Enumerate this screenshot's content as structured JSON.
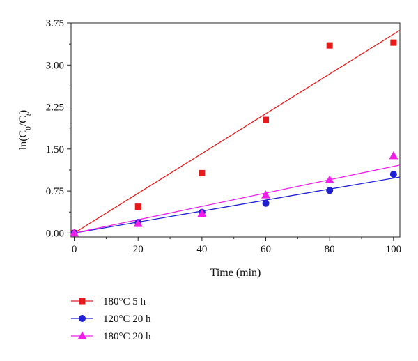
{
  "chart_data": {
    "type": "scatter",
    "xlabel": "Time (min)",
    "ylabel": {
      "prefix": "ln(C",
      "sub1": "0",
      "mid": "/C",
      "sub2": "t",
      "suffix": ")"
    },
    "xlim": [
      -1,
      102
    ],
    "ylim": [
      -0.07,
      3.75
    ],
    "xticks": [
      0,
      20,
      40,
      60,
      80,
      100
    ],
    "yticks": [
      0.0,
      0.75,
      1.5,
      2.25,
      3.0,
      3.75
    ],
    "xtick_labels": [
      "0",
      "20",
      "40",
      "60",
      "80",
      "100"
    ],
    "ytick_labels": [
      "0.00",
      "0.75",
      "1.50",
      "2.25",
      "3.00",
      "3.75"
    ],
    "grid": false,
    "legend_position": "bottom-left-outside",
    "series": [
      {
        "name": "180°C 5 h",
        "color": "#e8191a",
        "marker": "square",
        "x": [
          0,
          20,
          40,
          60,
          80,
          100
        ],
        "y": [
          0.0,
          0.47,
          1.07,
          2.02,
          3.35,
          3.4
        ],
        "fit": {
          "slope": 0.0355,
          "intercept": 0.0
        }
      },
      {
        "name": "120°C 20 h",
        "color": "#1f1fd6",
        "marker": "circle",
        "x": [
          0,
          20,
          40,
          60,
          80,
          100
        ],
        "y": [
          0.0,
          0.19,
          0.37,
          0.53,
          0.76,
          1.05
        ],
        "fit": {
          "slope": 0.0098,
          "intercept": 0.0
        }
      },
      {
        "name": "180°C 20 h",
        "color": "#ee1ee8",
        "marker": "triangle",
        "x": [
          0,
          20,
          40,
          60,
          80,
          100
        ],
        "y": [
          0.0,
          0.17,
          0.35,
          0.68,
          0.95,
          1.38
        ],
        "fit": {
          "slope": 0.0119,
          "intercept": 0.0
        }
      }
    ]
  }
}
